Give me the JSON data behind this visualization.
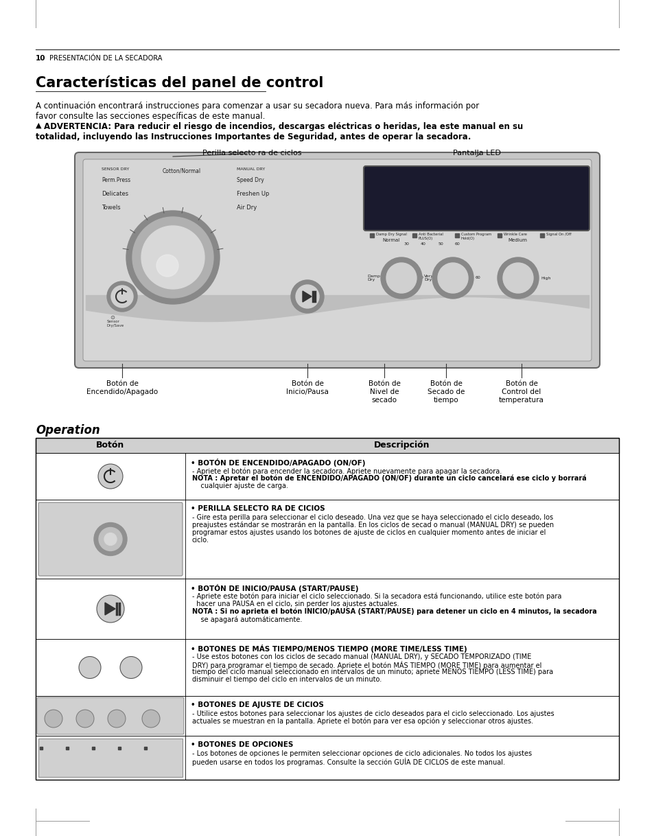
{
  "page_bg": "#ffffff",
  "page_number": "10",
  "page_header_text": "PRESENTACIÓN DE LA SECADORA",
  "section_title": "Características del panel de control",
  "intro_line1": "A continuación encontrará instrucciones para comenzar a usar su secadora nueva. Para más información por",
  "intro_line2": "favor consulte las secciones específicas de este manual.",
  "warn_line1": "ADVERTENCIA: Para reducir el riesgo de incendios, descargas eléctricas o heridas, lea este manual en su",
  "warn_line2": "totalidad, incluyendo las Instrucciones Importantes de Seguridad, antes de operar la secadora.",
  "label_perilla": "Perilla selecto ra de ciclos",
  "label_pantalla": "Pantalla LED",
  "label_boton_encendido": "Botón de\nEncendido/Apagado",
  "label_boton_inicio": "Botón de\nInicio/Pausa",
  "label_boton_nivel": "Botón de\nNivel de\nsecado",
  "label_boton_secado": "Botón de\nSecado de\ntiempo",
  "label_boton_control": "Botón de\nControl del\ntemperatura",
  "operation_title": "Operation",
  "table_col1": "Botón",
  "table_col2": "Descripción",
  "row1_title": "BOTÓN DE ENCENDIDO/APAGADO (ON/OF)",
  "row1_body": "- Apriete el botón para encender la secadora. Apriete nuevamente para apagar la secadora.",
  "row1_nota": "NOTA : Apretar el botón de ENCENDIDO/APAGADO (ON/OF) durante un ciclo cancelará ese ciclo y borrará",
  "row1_nota2": "    cualquier ajuste de carga.",
  "row2_title": "PERILLA SELECTO RA DE CICIOS",
  "row2_body1": "- Gire esta perilla para seleccionar el ciclo deseado. Una vez que se haya seleccionado el ciclo deseado, los",
  "row2_body2": "preajustes estándar se mostrarán en la pantalla. En los ciclos de secad o manual (MANUAL DRY) se pueden",
  "row2_body3": "programar estos ajustes usando los botones de ajuste de ciclos en cualquier momento antes de iniciar el",
  "row2_body4": "ciclo.",
  "row3_title": "BOTÓN DE INICIO/PAUSA (START/PAUSE)",
  "row3_body1": "- Apriete este botón para iniciar el ciclo seleccionado. Si la secadora está funcionando, utilice este botón para",
  "row3_body2": "  hacer una PAUSA en el ciclo, sin perder los ajustes actuales.",
  "row3_nota": "NOTA : Si no aprieta el botón INICIO/pAUSA (START/PAUSE) para detener un ciclo en 4 minutos, la secadora",
  "row3_nota2": "    se apagará automáticamente.",
  "row4_title": "BOTONES DE MÁS TIEMPO/MENOS TIEMPO (MORE TIME/LESS TIME)",
  "row4_body1": "- Use estos botones con los ciclos de secado manual (MANUAL DRY), y SECADO TEMPORIZADO (TIME",
  "row4_body2": "DRY) para programar el tiempo de secado. Apriete el botón MÁS TIEMPO (MORE TIME) para aumentar el",
  "row4_body3": "tiempo del ciclo manual seleccionado en intervalos de un minuto; apriete MENOS TIEMPO (LESS TIME) para",
  "row4_body4": "disminuir el tiempo del ciclo en intervalos de un minuto.",
  "row5_title": "BOTONES DE AJUSTE DE CICIOS",
  "row5_body1": "- Utilice estos botones para seleccionar los ajustes de ciclo deseados para el ciclo seleccionado. Los ajustes",
  "row5_body2": "actuales se muestran en la pantalla. Apriete el botón para ver esa opción y seleccionar otros ajustes.",
  "row6_title": "BOTONES DE OPCIONES",
  "row6_body1": "- Los botones de opciones le permiten seleccionar opciones de ciclo adicionales. No todos los ajustes",
  "row6_body2": "pueden usarse en todos los programas. Consulte la sección GUÍA DE CICLOS de este manual."
}
